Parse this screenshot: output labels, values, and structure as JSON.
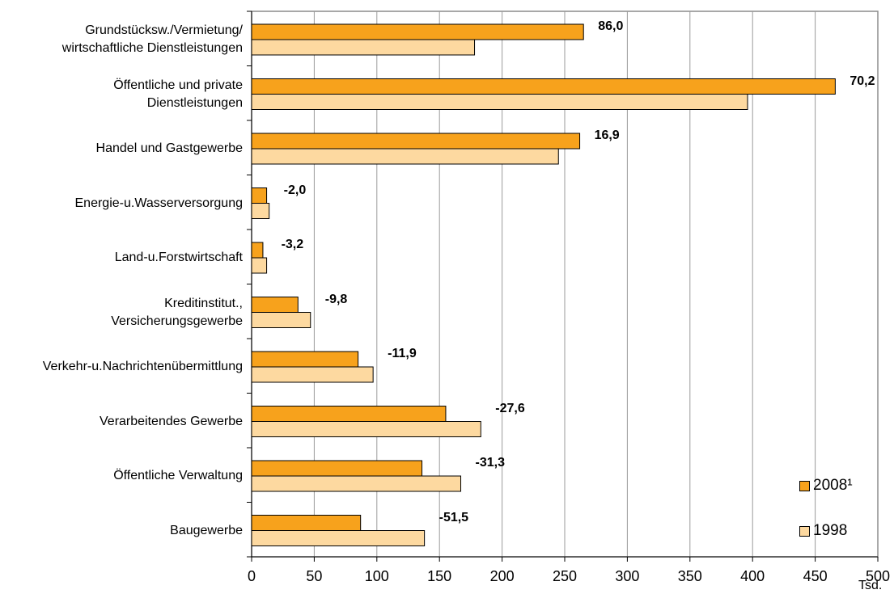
{
  "chart_data": {
    "type": "bar",
    "orientation": "horizontal",
    "categories": [
      [
        "Grundstücksw./Vermietung/",
        "wirtschaftliche Dienstleistungen"
      ],
      [
        "Öffentliche und private",
        "Dienstleistungen"
      ],
      [
        "Handel und Gastgewerbe"
      ],
      [
        "Energie-u.Wasserversorgung"
      ],
      [
        "Land-u.Forstwirtschaft"
      ],
      [
        "Kreditinstitut.,",
        "Versicherungsgewerbe"
      ],
      [
        "Verkehr-u.Nachrichtenübermittlung"
      ],
      [
        "Verarbeitendes Gewerbe"
      ],
      [
        "Öffentliche Verwaltung"
      ],
      [
        "Baugewerbe"
      ]
    ],
    "series": [
      {
        "name": "2008¹",
        "color": "#F7A21C",
        "values": [
          265,
          466,
          262,
          12,
          9,
          37,
          85,
          155,
          136,
          87
        ]
      },
      {
        "name": "1998",
        "color": "#FDD9A0",
        "values": [
          178,
          396,
          245,
          14,
          12,
          47,
          97,
          183,
          167,
          138
        ]
      }
    ],
    "data_labels": [
      "86,0",
      "70,2",
      "16,9",
      "-2,0",
      "-3,2",
      "-9,8",
      "-11,9",
      "-27,6",
      "-31,3",
      "-51,5"
    ],
    "x_ticks": [
      "0",
      "50",
      "100",
      "150",
      "200",
      "250",
      "300",
      "350",
      "400",
      "450",
      "500"
    ],
    "xlim": [
      0,
      500
    ],
    "x_unit": "Tsd.",
    "grid": "vertical",
    "legend_position": "bottom-right"
  }
}
